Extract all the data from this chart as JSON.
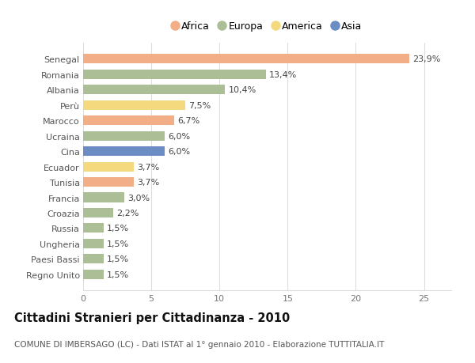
{
  "countries": [
    "Senegal",
    "Romania",
    "Albania",
    "Perù",
    "Marocco",
    "Ucraina",
    "Cina",
    "Ecuador",
    "Tunisia",
    "Francia",
    "Croazia",
    "Russia",
    "Ungheria",
    "Paesi Bassi",
    "Regno Unito"
  ],
  "values": [
    23.9,
    13.4,
    10.4,
    7.5,
    6.7,
    6.0,
    6.0,
    3.7,
    3.7,
    3.0,
    2.2,
    1.5,
    1.5,
    1.5,
    1.5
  ],
  "labels": [
    "23,9%",
    "13,4%",
    "10,4%",
    "7,5%",
    "6,7%",
    "6,0%",
    "6,0%",
    "3,7%",
    "3,7%",
    "3,0%",
    "2,2%",
    "1,5%",
    "1,5%",
    "1,5%",
    "1,5%"
  ],
  "continents": [
    "Africa",
    "Europa",
    "Europa",
    "America",
    "Africa",
    "Europa",
    "Asia",
    "America",
    "Africa",
    "Europa",
    "Europa",
    "Europa",
    "Europa",
    "Europa",
    "Europa"
  ],
  "colors": {
    "Africa": "#F2AE87",
    "Europa": "#ABBE96",
    "America": "#F5D97E",
    "Asia": "#6B8DC4"
  },
  "legend_order": [
    "Africa",
    "Europa",
    "America",
    "Asia"
  ],
  "xlim": [
    0,
    27
  ],
  "xticks": [
    0,
    5,
    10,
    15,
    20,
    25
  ],
  "title": "Cittadini Stranieri per Cittadinanza - 2010",
  "subtitle": "COMUNE DI IMBERSAGO (LC) - Dati ISTAT al 1° gennaio 2010 - Elaborazione TUTTITALIA.IT",
  "bg_color": "#FFFFFF",
  "grid_color": "#DDDDDD",
  "bar_height": 0.62,
  "label_fontsize": 8,
  "tick_fontsize": 8,
  "title_fontsize": 10.5,
  "subtitle_fontsize": 7.5,
  "legend_fontsize": 9
}
